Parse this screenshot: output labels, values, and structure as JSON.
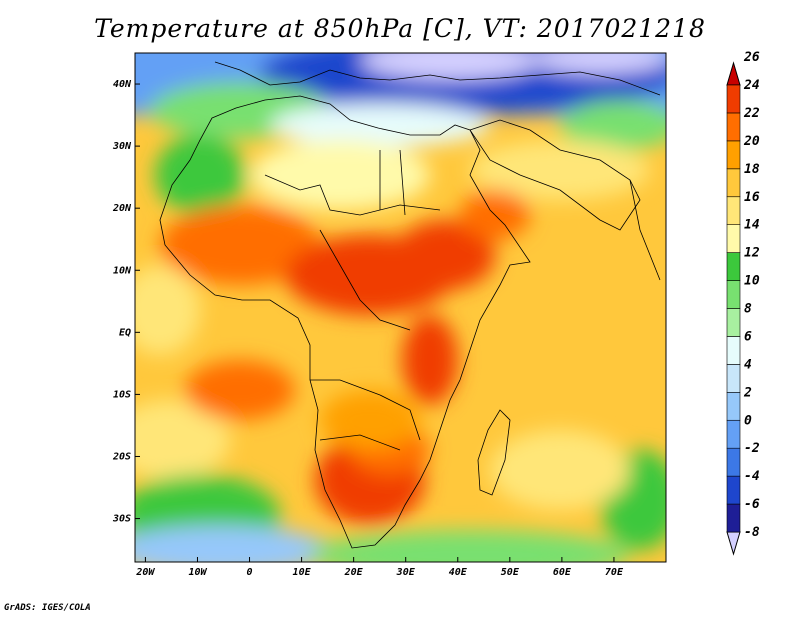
{
  "title": "Temperature at 850hPa [C], VT: 2017021218",
  "credit": "GrADS: IGES/COLA",
  "axes": {
    "lon_ticks": [
      {
        "lon": -20,
        "label": "20W"
      },
      {
        "lon": -10,
        "label": "10W"
      },
      {
        "lon": 0,
        "label": "0"
      },
      {
        "lon": 10,
        "label": "10E"
      },
      {
        "lon": 20,
        "label": "20E"
      },
      {
        "lon": 30,
        "label": "30E"
      },
      {
        "lon": 40,
        "label": "40E"
      },
      {
        "lon": 50,
        "label": "50E"
      },
      {
        "lon": 60,
        "label": "60E"
      },
      {
        "lon": 70,
        "label": "70E"
      }
    ],
    "lat_ticks": [
      {
        "lat": 40,
        "label": "40N"
      },
      {
        "lat": 30,
        "label": "30N"
      },
      {
        "lat": 20,
        "label": "20N"
      },
      {
        "lat": 10,
        "label": "10N"
      },
      {
        "lat": 0,
        "label": "EQ"
      },
      {
        "lat": -10,
        "label": "10S"
      },
      {
        "lat": -20,
        "label": "20S"
      },
      {
        "lat": -30,
        "label": "30S"
      }
    ],
    "lon_range": [
      -22,
      80
    ],
    "lat_range": [
      -37,
      45
    ]
  },
  "colorbar": {
    "colors": [
      "#d4d0ff",
      "#1e1e96",
      "#1e46cd",
      "#3c78e6",
      "#64a0f5",
      "#96c8fa",
      "#c8e6fa",
      "#e6fcfc",
      "#a8f0a0",
      "#78e070",
      "#3cc83c",
      "#fffaaa",
      "#ffe678",
      "#ffc83c",
      "#ffa000",
      "#ff6e00",
      "#f03c00",
      "#c80000"
    ],
    "labels": [
      "-8",
      "-6",
      "-4",
      "-2",
      "0",
      "2",
      "4",
      "6",
      "8",
      "10",
      "12",
      "14",
      "16",
      "18",
      "20",
      "22",
      "24",
      "26"
    ]
  }
}
